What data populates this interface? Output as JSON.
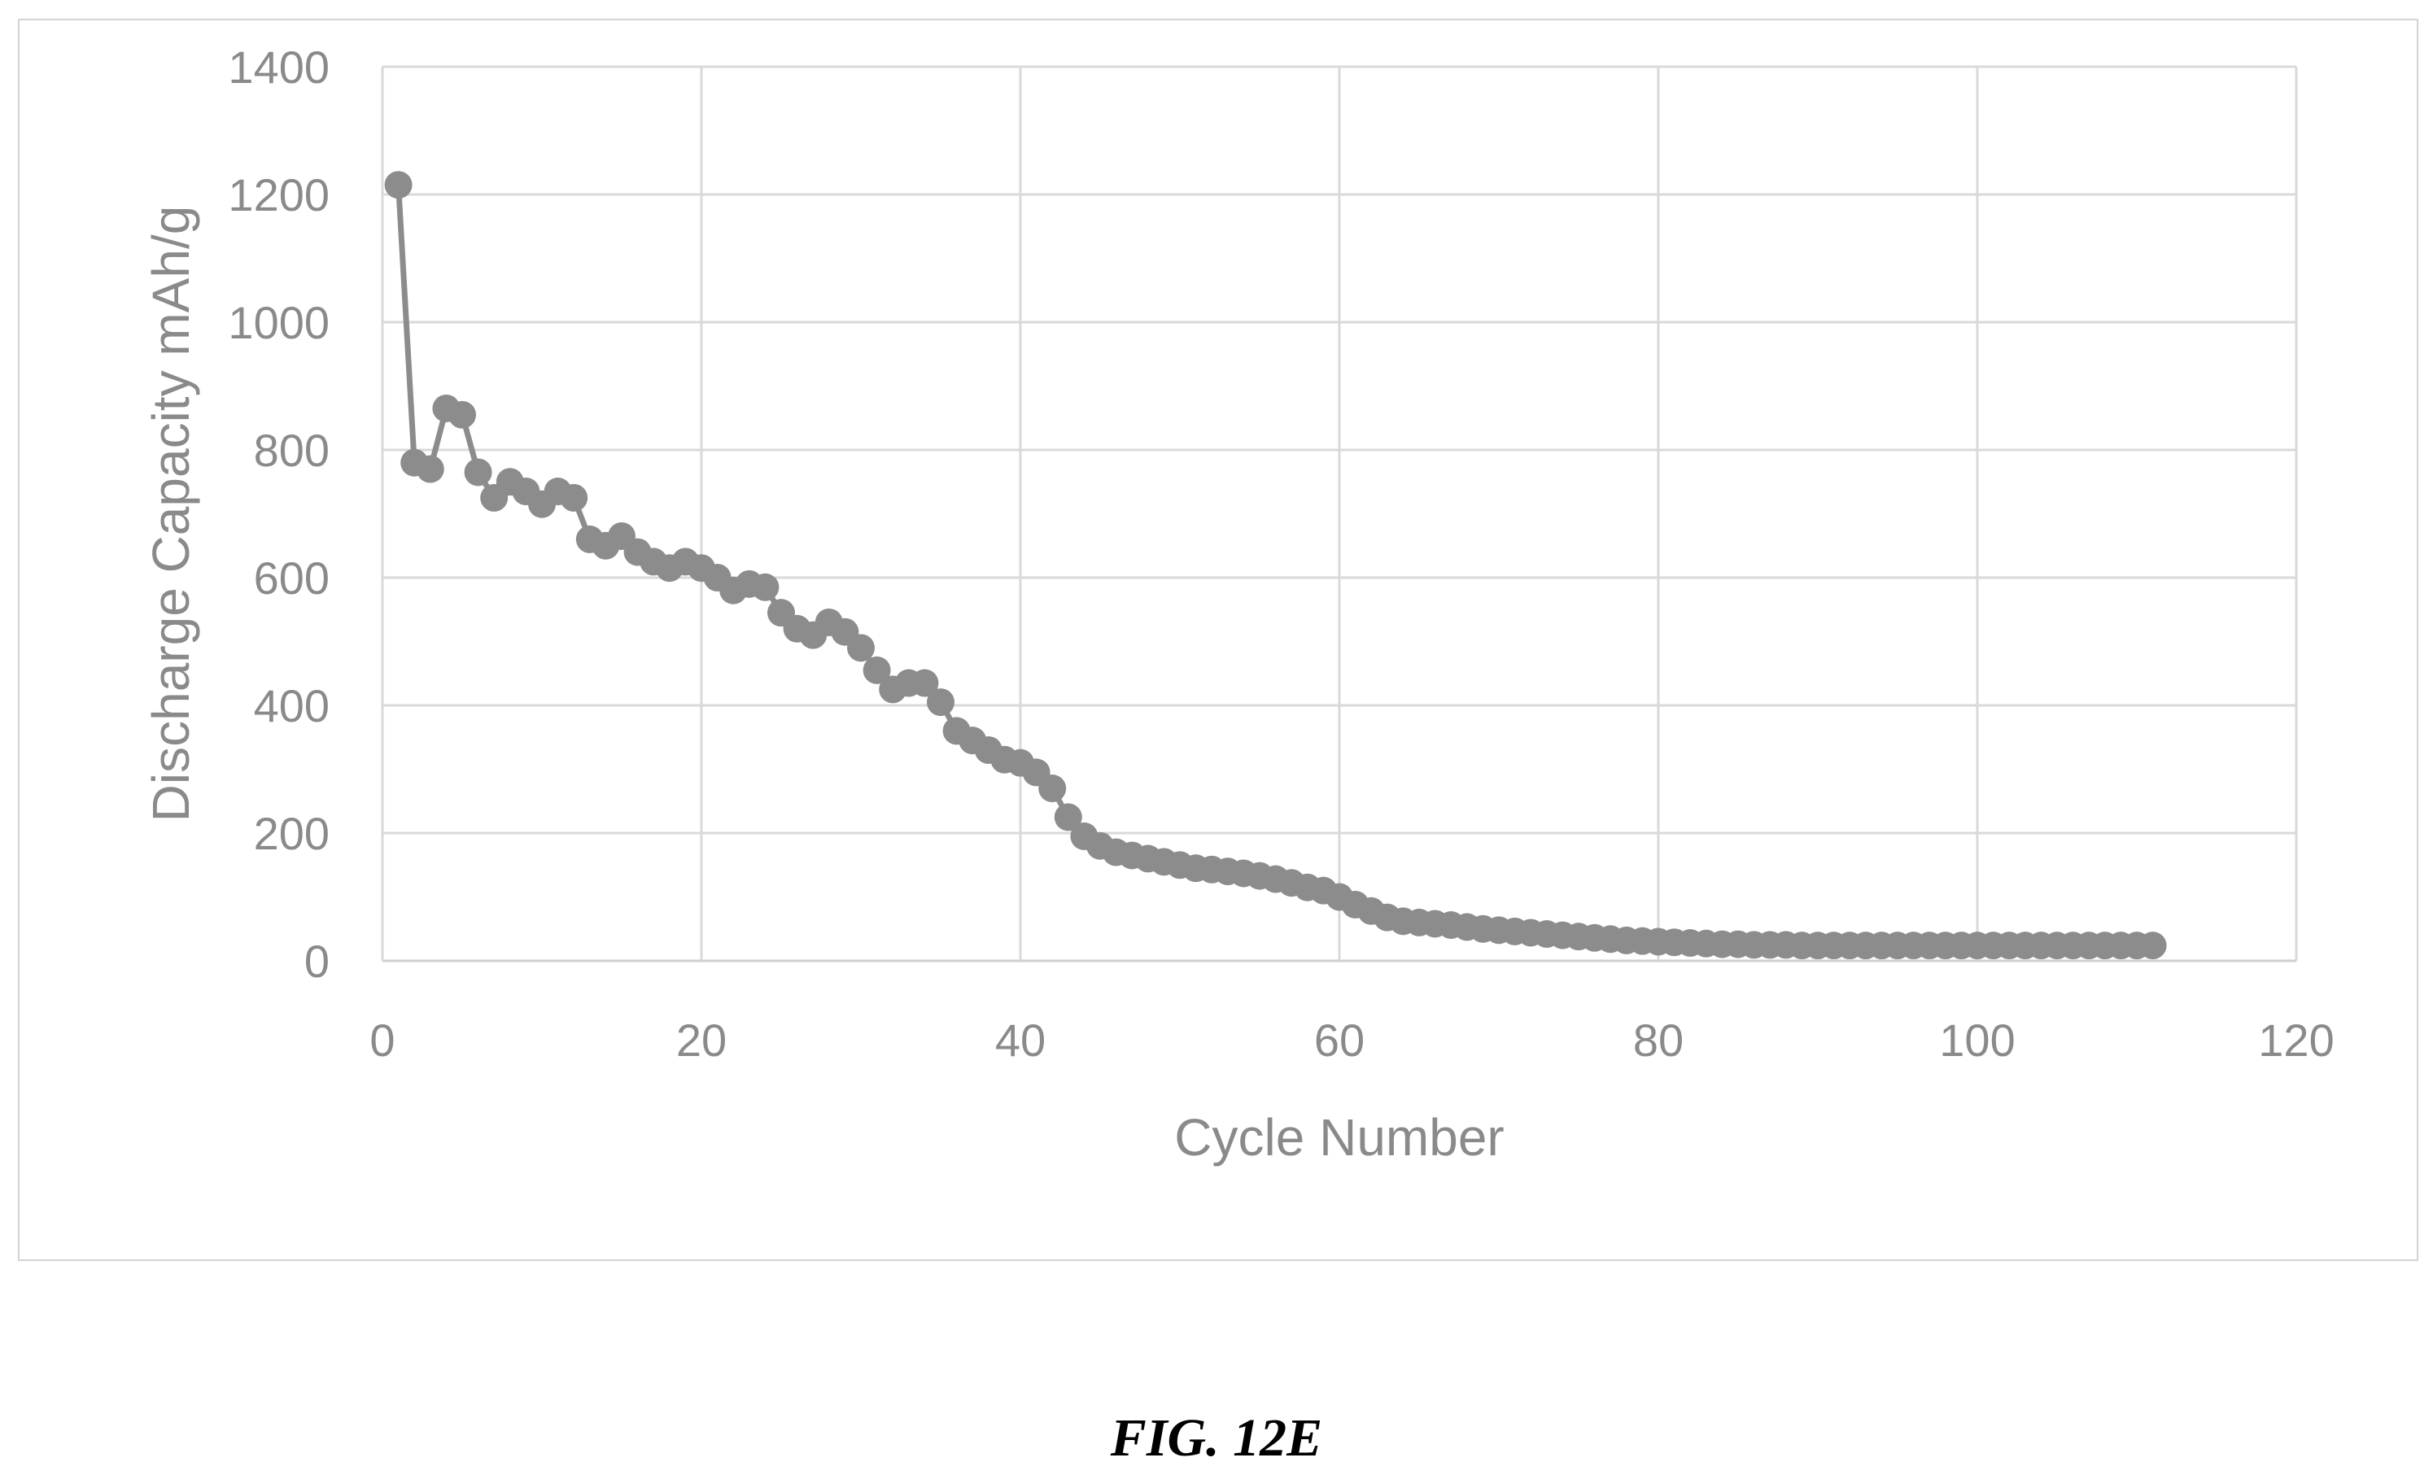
{
  "chart_data": {
    "type": "scatter",
    "xlabel": "Cycle Number",
    "ylabel": "Discharge Capacity mAh/g",
    "xlim": [
      0,
      120
    ],
    "ylim": [
      0,
      1400
    ],
    "xticks": [
      0,
      20,
      40,
      60,
      80,
      100,
      120
    ],
    "yticks": [
      0,
      200,
      400,
      600,
      800,
      1000,
      1200,
      1400
    ],
    "grid": true,
    "legend": "none",
    "series": [
      {
        "color": "#8c8c8c",
        "x": [
          1,
          2,
          3,
          4,
          5,
          6,
          7,
          8,
          9,
          10,
          11,
          12,
          13,
          14,
          15,
          16,
          17,
          18,
          19,
          20,
          21,
          22,
          23,
          24,
          25,
          26,
          27,
          28,
          29,
          30,
          31,
          32,
          33,
          34,
          35,
          36,
          37,
          38,
          39,
          40,
          41,
          42,
          43,
          44,
          45,
          46,
          47,
          48,
          49,
          50,
          51,
          52,
          53,
          54,
          55,
          56,
          57,
          58,
          59,
          60,
          61,
          62,
          63,
          64,
          65,
          66,
          67,
          68,
          69,
          70,
          71,
          72,
          73,
          74,
          75,
          76,
          77,
          78,
          79,
          80,
          81,
          82,
          83,
          84,
          85,
          86,
          87,
          88,
          89,
          90,
          91,
          92,
          93,
          94,
          95,
          96,
          97,
          98,
          99,
          100,
          101,
          102,
          103,
          104,
          105,
          106,
          107,
          108,
          109,
          110,
          111
        ],
        "y": [
          1215,
          780,
          770,
          865,
          855,
          765,
          725,
          750,
          735,
          715,
          735,
          725,
          660,
          650,
          665,
          640,
          625,
          615,
          625,
          615,
          600,
          580,
          590,
          585,
          545,
          520,
          510,
          530,
          515,
          490,
          455,
          425,
          435,
          435,
          405,
          360,
          345,
          330,
          315,
          310,
          295,
          270,
          225,
          195,
          180,
          170,
          165,
          160,
          155,
          150,
          145,
          143,
          140,
          137,
          133,
          128,
          122,
          115,
          110,
          100,
          88,
          78,
          68,
          62,
          60,
          58,
          56,
          53,
          50,
          48,
          46,
          44,
          42,
          40,
          38,
          36,
          34,
          32,
          31,
          30,
          29,
          28,
          27,
          26,
          26,
          25,
          25,
          25,
          24,
          24,
          24,
          24,
          24,
          24,
          24,
          24,
          24,
          24,
          24,
          24,
          24,
          24,
          24,
          24,
          24,
          24,
          24,
          24,
          24,
          24,
          24
        ]
      }
    ]
  },
  "figure": {
    "caption": "FIG. 12E"
  }
}
